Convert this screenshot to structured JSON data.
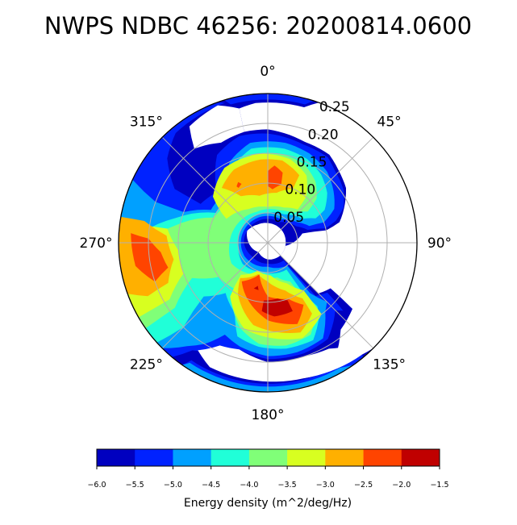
{
  "chart_data": {
    "type": "polar-contour",
    "title": "NWPS NDBC 46256: 20200814.0600",
    "angle_ticks": [
      {
        "deg": 0,
        "label": "0°"
      },
      {
        "deg": 45,
        "label": "45°"
      },
      {
        "deg": 90,
        "label": "90°"
      },
      {
        "deg": 135,
        "label": "135°"
      },
      {
        "deg": 180,
        "label": "180°"
      },
      {
        "deg": 225,
        "label": "225°"
      },
      {
        "deg": 270,
        "label": "270°"
      },
      {
        "deg": 315,
        "label": "315°"
      }
    ],
    "radial_ticks": [
      {
        "r": 0.05,
        "label": "0.05"
      },
      {
        "r": 0.1,
        "label": "0.10"
      },
      {
        "r": 0.15,
        "label": "0.15"
      },
      {
        "r": 0.2,
        "label": "0.20"
      },
      {
        "r": 0.25,
        "label": "0.25"
      }
    ],
    "rlim": [
      0,
      0.25
    ],
    "theta_zero": "N",
    "theta_direction": "clockwise",
    "grid": true,
    "colorbar": {
      "label": "Energy density (m^2/deg/Hz)",
      "placement": "bottom",
      "levels": [
        -6.0,
        -5.5,
        -5.0,
        -4.5,
        -4.0,
        -3.5,
        -3.0,
        -2.5,
        -2.0,
        -1.5
      ],
      "tick_labels": [
        "−6.0",
        "−5.5",
        "−5.0",
        "−4.5",
        "−4.0",
        "−3.5",
        "−3.0",
        "−2.5",
        "−2.0",
        "−1.5"
      ],
      "colors": [
        "#0000c0",
        "#0022ff",
        "#00a0ff",
        "#20ffd8",
        "#80ff78",
        "#d8ff20",
        "#ffb000",
        "#ff4400",
        "#c00000"
      ]
    },
    "contours": [
      {
        "level": 1,
        "points": [
          [
            343,
            0.25
          ],
          [
            18,
            0.25
          ],
          [
            15,
            0.24
          ],
          [
            345,
            0.24
          ]
        ]
      },
      {
        "level": 1,
        "points": [
          [
            285,
            0.25
          ],
          [
            320,
            0.25
          ],
          [
            340,
            0.25
          ],
          [
            343,
            0.245
          ],
          [
            320,
            0.24
          ],
          [
            310,
            0.22
          ],
          [
            300,
            0.18
          ],
          [
            300,
            0.13
          ],
          [
            315,
            0.12
          ],
          [
            330,
            0.17
          ],
          [
            345,
            0.185
          ],
          [
            0,
            0.183
          ],
          [
            20,
            0.175
          ],
          [
            35,
            0.175
          ],
          [
            43,
            0.165
          ],
          [
            55,
            0.155
          ],
          [
            65,
            0.14
          ],
          [
            72,
            0.12
          ],
          [
            76,
            0.1
          ],
          [
            72,
            0.07
          ],
          [
            60,
            0.055
          ],
          [
            30,
            0.04
          ],
          [
            0,
            0.04
          ],
          [
            300,
            0.04
          ],
          [
            270,
            0.04
          ],
          [
            230,
            0.035
          ],
          [
            180,
            0.035
          ],
          [
            138,
            0.04
          ],
          [
            138,
            0.12
          ],
          [
            130,
            0.13
          ],
          [
            132,
            0.17
          ],
          [
            135,
            0.16
          ],
          [
            148,
            0.19
          ],
          [
            162,
            0.195
          ],
          [
            180,
            0.195
          ],
          [
            195,
            0.185
          ],
          [
            205,
            0.19
          ],
          [
            210,
            0.21
          ],
          [
            215,
            0.22
          ],
          [
            220,
            0.25
          ],
          [
            250,
            0.25
          ]
        ]
      },
      {
        "level": 1,
        "points": [
          [
            140,
            0.25
          ],
          [
            215,
            0.25
          ],
          [
            213,
            0.235
          ],
          [
            140,
            0.238
          ]
        ]
      },
      {
        "level": 2,
        "points": [
          [
            295,
            0.25
          ],
          [
            290,
            0.2
          ],
          [
            290,
            0.15
          ],
          [
            300,
            0.11
          ],
          [
            320,
            0.11
          ],
          [
            335,
            0.15
          ],
          [
            350,
            0.17
          ],
          [
            10,
            0.17
          ],
          [
            25,
            0.165
          ],
          [
            40,
            0.155
          ],
          [
            52,
            0.14
          ],
          [
            63,
            0.125
          ],
          [
            70,
            0.1
          ],
          [
            68,
            0.075
          ],
          [
            55,
            0.06
          ],
          [
            30,
            0.045
          ],
          [
            0,
            0.045
          ],
          [
            300,
            0.045
          ],
          [
            240,
            0.045
          ],
          [
            180,
            0.04
          ],
          [
            140,
            0.05
          ],
          [
            140,
            0.11
          ],
          [
            135,
            0.14
          ],
          [
            140,
            0.15
          ],
          [
            150,
            0.185
          ],
          [
            165,
            0.19
          ],
          [
            180,
            0.19
          ],
          [
            195,
            0.18
          ],
          [
            205,
            0.17
          ],
          [
            212,
            0.2
          ],
          [
            218,
            0.22
          ],
          [
            225,
            0.25
          ],
          [
            260,
            0.25
          ]
        ]
      },
      {
        "level": 2,
        "points": [
          [
            145,
            0.25
          ],
          [
            215,
            0.25
          ],
          [
            213,
            0.24
          ],
          [
            150,
            0.242
          ]
        ]
      },
      {
        "level": 3,
        "points": [
          [
            275,
            0.25
          ],
          [
            277,
            0.2
          ],
          [
            285,
            0.16
          ],
          [
            300,
            0.1
          ],
          [
            320,
            0.1
          ],
          [
            335,
            0.14
          ],
          [
            350,
            0.16
          ],
          [
            10,
            0.16
          ],
          [
            25,
            0.155
          ],
          [
            38,
            0.145
          ],
          [
            50,
            0.13
          ],
          [
            60,
            0.11
          ],
          [
            63,
            0.09
          ],
          [
            55,
            0.07
          ],
          [
            30,
            0.055
          ],
          [
            0,
            0.05
          ],
          [
            300,
            0.05
          ],
          [
            260,
            0.05
          ],
          [
            230,
            0.055
          ],
          [
            190,
            0.05
          ],
          [
            145,
            0.055
          ],
          [
            145,
            0.1
          ],
          [
            142,
            0.135
          ],
          [
            145,
            0.15
          ],
          [
            155,
            0.18
          ],
          [
            170,
            0.18
          ],
          [
            185,
            0.175
          ],
          [
            198,
            0.165
          ],
          [
            205,
            0.13
          ],
          [
            220,
            0.11
          ],
          [
            230,
            0.14
          ],
          [
            225,
            0.2
          ],
          [
            228,
            0.25
          ],
          [
            250,
            0.25
          ]
        ]
      },
      {
        "level": 4,
        "points": [
          [
            272,
            0.25
          ],
          [
            272,
            0.2
          ],
          [
            280,
            0.16
          ],
          [
            295,
            0.1
          ],
          [
            320,
            0.09
          ],
          [
            335,
            0.13
          ],
          [
            350,
            0.15
          ],
          [
            10,
            0.15
          ],
          [
            25,
            0.145
          ],
          [
            38,
            0.13
          ],
          [
            48,
            0.11
          ],
          [
            52,
            0.085
          ],
          [
            40,
            0.065
          ],
          [
            20,
            0.058
          ],
          [
            340,
            0.055
          ],
          [
            300,
            0.06
          ],
          [
            265,
            0.065
          ],
          [
            240,
            0.07
          ],
          [
            210,
            0.06
          ],
          [
            165,
            0.06
          ],
          [
            150,
            0.075
          ],
          [
            145,
            0.14
          ],
          [
            155,
            0.17
          ],
          [
            170,
            0.175
          ],
          [
            185,
            0.17
          ],
          [
            198,
            0.15
          ],
          [
            210,
            0.12
          ],
          [
            215,
            0.095
          ],
          [
            235,
            0.1
          ],
          [
            245,
            0.14
          ],
          [
            235,
            0.19
          ],
          [
            235,
            0.25
          ],
          [
            255,
            0.25
          ]
        ]
      },
      {
        "level": 5,
        "points": [
          [
            300,
            0.08
          ],
          [
            310,
            0.12
          ],
          [
            330,
            0.145
          ],
          [
            355,
            0.15
          ],
          [
            15,
            0.145
          ],
          [
            30,
            0.13
          ],
          [
            40,
            0.1
          ],
          [
            42,
            0.075
          ],
          [
            25,
            0.065
          ],
          [
            0,
            0.06
          ],
          [
            330,
            0.065
          ]
        ]
      },
      {
        "level": 5,
        "points": [
          [
            200,
            0.05
          ],
          [
            220,
            0.07
          ],
          [
            215,
            0.11
          ],
          [
            195,
            0.15
          ],
          [
            160,
            0.17
          ],
          [
            143,
            0.15
          ],
          [
            143,
            0.1
          ],
          [
            155,
            0.075
          ],
          [
            175,
            0.055
          ]
        ]
      },
      {
        "level": 5,
        "points": [
          [
            276,
            0.25
          ],
          [
            278,
            0.21
          ],
          [
            278,
            0.17
          ],
          [
            265,
            0.15
          ],
          [
            250,
            0.15
          ],
          [
            240,
            0.19
          ],
          [
            240,
            0.25
          ]
        ]
      },
      {
        "level": 6,
        "points": [
          [
            320,
            0.12
          ],
          [
            335,
            0.135
          ],
          [
            355,
            0.14
          ],
          [
            10,
            0.14
          ],
          [
            25,
            0.125
          ],
          [
            25,
            0.1
          ],
          [
            10,
            0.085
          ],
          [
            350,
            0.08
          ],
          [
            330,
            0.09
          ]
        ]
      },
      {
        "level": 6,
        "points": [
          [
            197,
            0.055
          ],
          [
            218,
            0.075
          ],
          [
            210,
            0.1
          ],
          [
            190,
            0.14
          ],
          [
            160,
            0.16
          ],
          [
            148,
            0.14
          ],
          [
            148,
            0.11
          ],
          [
            160,
            0.085
          ],
          [
            180,
            0.065
          ]
        ]
      },
      {
        "level": 6,
        "points": [
          [
            280,
            0.25
          ],
          [
            280,
            0.21
          ],
          [
            274,
            0.17
          ],
          [
            260,
            0.16
          ],
          [
            248,
            0.18
          ],
          [
            246,
            0.22
          ],
          [
            250,
            0.25
          ]
        ]
      },
      {
        "level": 7,
        "points": [
          [
            0,
            0.095
          ],
          [
            0,
            0.12
          ],
          [
            5,
            0.13
          ],
          [
            12,
            0.12
          ],
          [
            13,
            0.1
          ],
          [
            5,
            0.09
          ]
        ]
      },
      {
        "level": 7,
        "points": [
          [
            331,
            0.108
          ],
          [
            334,
            0.113
          ],
          [
            336,
            0.108
          ],
          [
            332,
            0.104
          ]
        ]
      },
      {
        "level": 7,
        "points": [
          [
            195,
            0.055
          ],
          [
            214,
            0.078
          ],
          [
            200,
            0.1
          ],
          [
            180,
            0.13
          ],
          [
            160,
            0.145
          ],
          [
            150,
            0.12
          ],
          [
            160,
            0.1
          ],
          [
            180,
            0.09
          ]
        ]
      },
      {
        "level": 7,
        "points": [
          [
            274,
            0.23
          ],
          [
            272,
            0.2
          ],
          [
            265,
            0.18
          ],
          [
            256,
            0.172
          ],
          [
            251,
            0.2
          ],
          [
            260,
            0.225
          ]
        ]
      },
      {
        "level": 8,
        "points": [
          [
            184,
            0.097
          ],
          [
            170,
            0.095
          ],
          [
            161,
            0.102
          ],
          [
            160,
            0.122
          ],
          [
            175,
            0.124
          ],
          [
            185,
            0.115
          ]
        ]
      },
      {
        "level": 8,
        "points": [
          [
            193,
            0.074
          ],
          [
            197,
            0.08
          ],
          [
            191,
            0.081
          ]
        ]
      }
    ],
    "empty_regions": [
      [
        [
          15,
          0.235
        ],
        [
          20,
          0.25
        ],
        [
          135,
          0.25
        ],
        [
          140,
          0.245
        ],
        [
          165,
          0.235
        ],
        [
          150,
          0.225
        ],
        [
          140,
          0.19
        ],
        [
          128,
          0.18
        ],
        [
          126,
          0.13
        ],
        [
          135,
          0.12
        ],
        [
          135,
          0.03
        ],
        [
          100,
          0.03
        ],
        [
          75,
          0.06
        ],
        [
          78,
          0.1
        ],
        [
          74,
          0.125
        ],
        [
          55,
          0.16
        ],
        [
          44,
          0.17
        ],
        [
          35,
          0.18
        ],
        [
          20,
          0.18
        ],
        [
          0,
          0.19
        ],
        [
          348,
          0.19
        ],
        [
          348,
          0.23
        ],
        [
          355,
          0.235
        ]
      ],
      [
        [
          322,
          0.2
        ],
        [
          326,
          0.235
        ],
        [
          340,
          0.245
        ],
        [
          348,
          0.23
        ],
        [
          348,
          0.19
        ],
        [
          335,
          0.185
        ]
      ],
      [
        [
          140,
          0.245
        ],
        [
          165,
          0.235
        ],
        [
          185,
          0.232
        ],
        [
          205,
          0.23
        ],
        [
          213,
          0.215
        ],
        [
          205,
          0.19
        ],
        [
          195,
          0.185
        ],
        [
          180,
          0.2
        ],
        [
          162,
          0.2
        ],
        [
          150,
          0.205
        ],
        [
          142,
          0.22
        ]
      ],
      [
        [
          0,
          0.033
        ],
        [
          90,
          0.03
        ],
        [
          135,
          0.03
        ],
        [
          180,
          0.028
        ],
        [
          225,
          0.022
        ],
        [
          270,
          0.032
        ],
        [
          300,
          0.04
        ],
        [
          330,
          0.035
        ]
      ]
    ]
  }
}
